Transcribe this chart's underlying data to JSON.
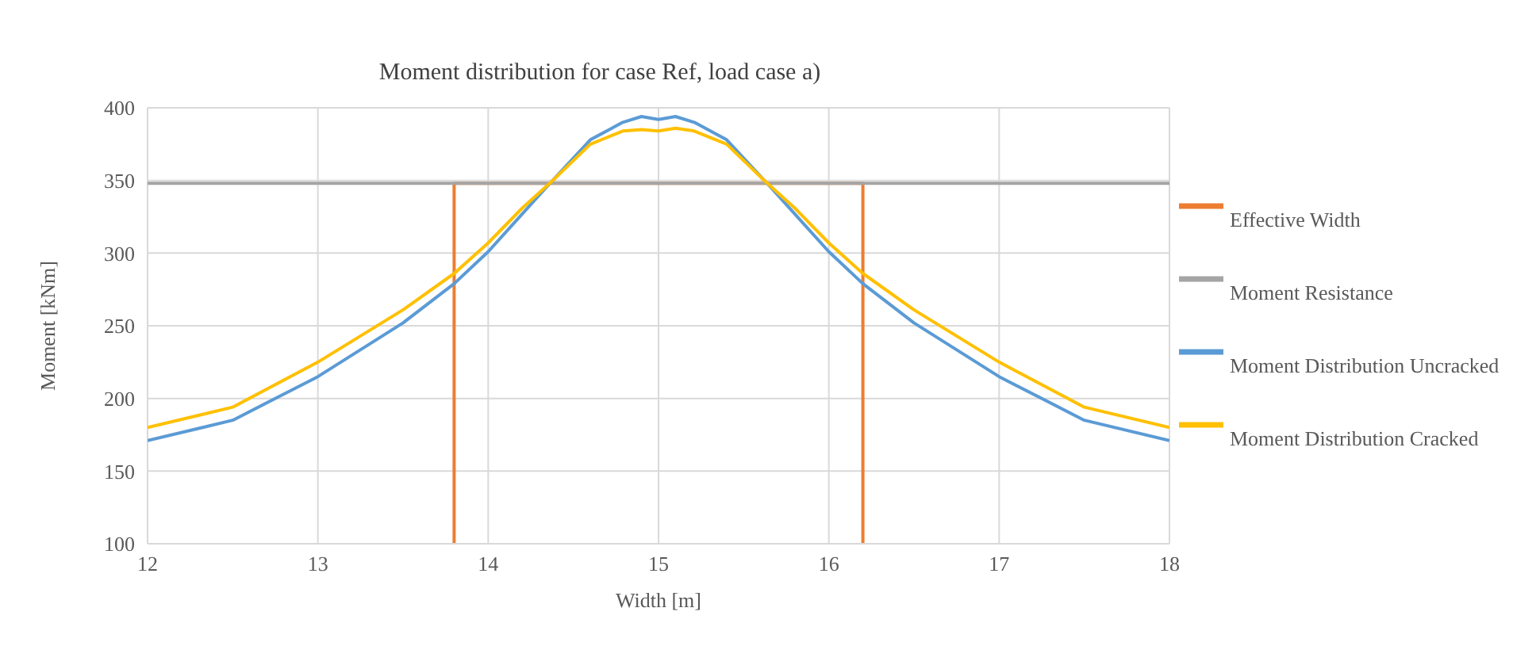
{
  "chart_data": {
    "type": "line",
    "title": "Moment distribution for case Ref, load case a)",
    "xlabel": "Width [m]",
    "ylabel": "Moment [kNm]",
    "xlim": [
      12,
      18
    ],
    "xticks": [
      12,
      13,
      14,
      15,
      16,
      17,
      18
    ],
    "ylim": [
      100,
      400
    ],
    "yticks": [
      100,
      150,
      200,
      250,
      300,
      350,
      400
    ],
    "grid": true,
    "legend": "right",
    "marker": "none",
    "line_style": "solid",
    "series": [
      {
        "name": "Effective Width",
        "color": "#ed7d31",
        "x": [
          13.8,
          13.8,
          16.2,
          16.2
        ],
        "values": [
          100,
          348,
          348,
          100
        ]
      },
      {
        "name": "Moment Resistance",
        "color": "#a5a5a5",
        "x": [
          12,
          18
        ],
        "values": [
          348,
          348
        ]
      },
      {
        "name": "Moment Distribution Uncracked",
        "color": "#5b9bd5",
        "x": [
          12,
          12.5,
          13,
          13.5,
          13.8,
          14,
          14.2,
          14.37,
          14.6,
          14.79,
          14.9,
          15,
          15.1,
          15.21,
          15.4,
          15.63,
          15.8,
          16,
          16.2,
          16.5,
          17,
          17.5,
          18
        ],
        "values": [
          171,
          185,
          215,
          252,
          279,
          301,
          327,
          349,
          378,
          390,
          394,
          392,
          394,
          390,
          378,
          349,
          327,
          301,
          279,
          252,
          215,
          185,
          171
        ]
      },
      {
        "name": "Moment Distribution Cracked",
        "color": "#ffc000",
        "x": [
          12,
          12.5,
          13,
          13.5,
          13.8,
          14,
          14.2,
          14.37,
          14.6,
          14.79,
          14.9,
          15,
          15.1,
          15.21,
          15.4,
          15.63,
          15.8,
          16,
          16.2,
          16.5,
          17,
          17.5,
          18
        ],
        "values": [
          180,
          194,
          225,
          261,
          286,
          307,
          331,
          349,
          375,
          384,
          385,
          384,
          386,
          384,
          375,
          349,
          331,
          307,
          286,
          261,
          225,
          194,
          180
        ]
      }
    ]
  }
}
